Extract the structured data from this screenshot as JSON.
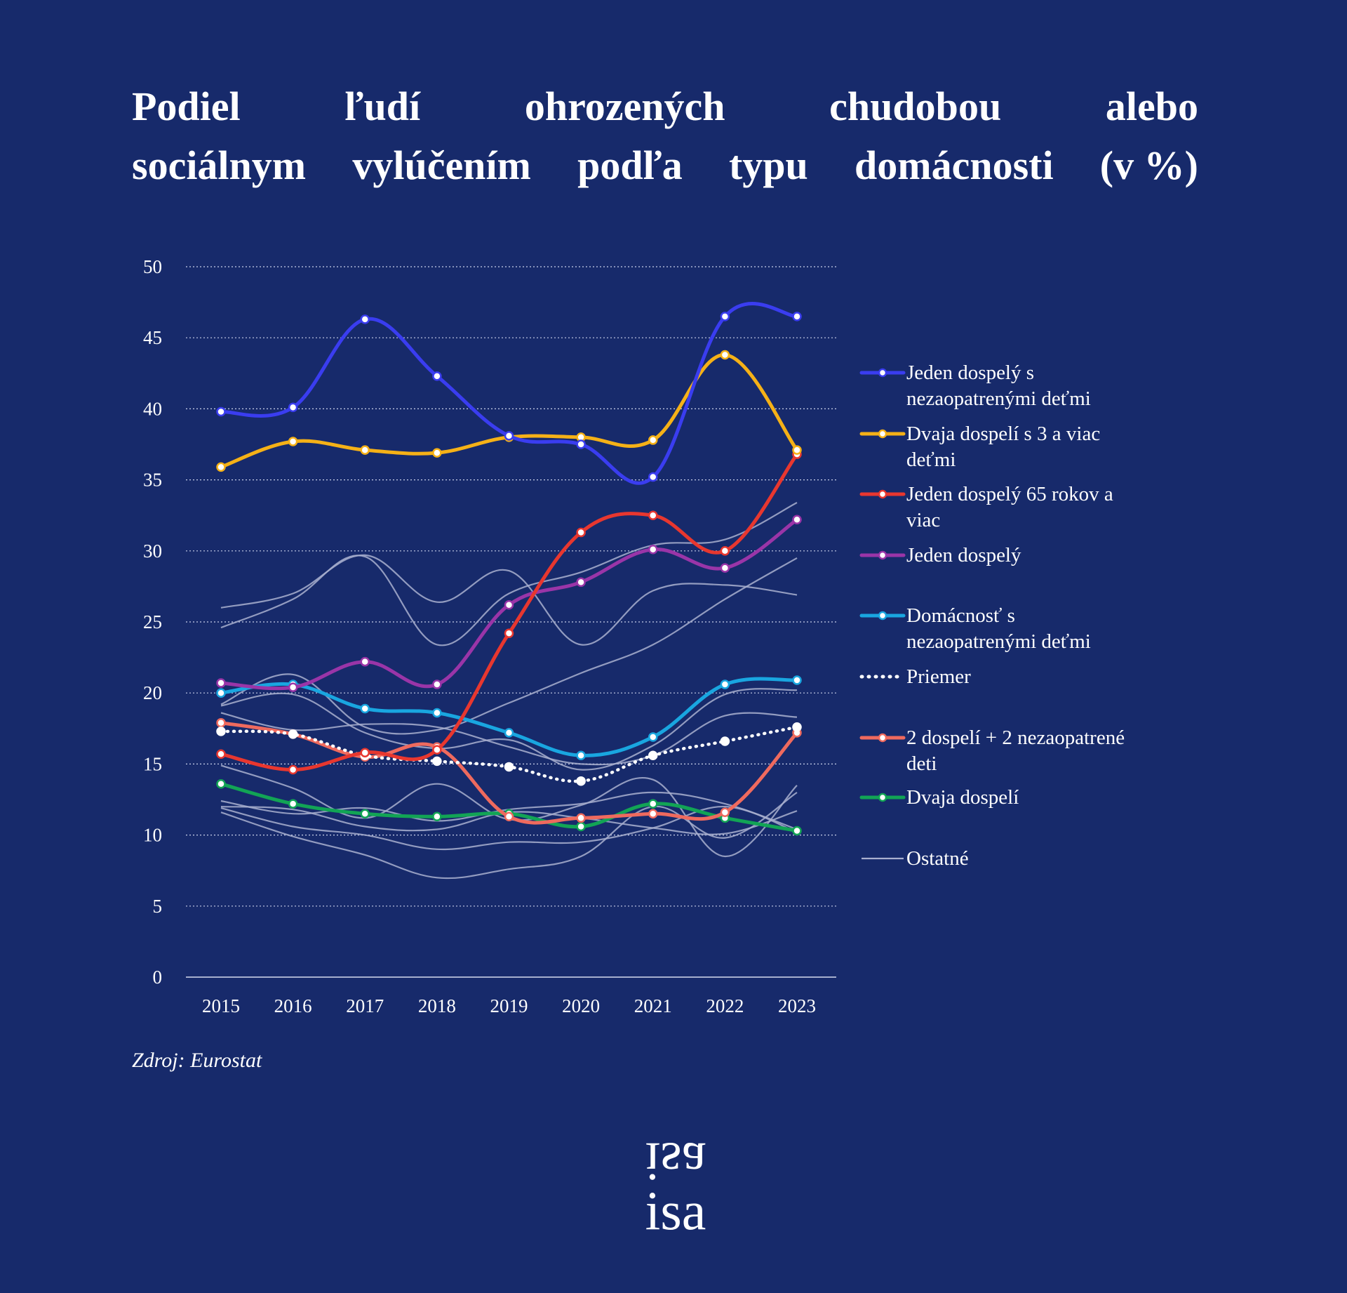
{
  "title_lines": [
    [
      "Podiel",
      "ľudí",
      "ohrozených",
      "chudobou",
      "alebo"
    ],
    [
      "sociálnym",
      "vylúčením",
      "podľa",
      "typu",
      "domácnosti",
      "(v %)"
    ]
  ],
  "source": "Zdroj: Eurostat",
  "logo": {
    "top": "isa",
    "bottom": "isa"
  },
  "colors": {
    "background": "#172a6b",
    "grid": "#c9d0ea",
    "axis": "#d6dbee",
    "text": "#ffffff",
    "other": "#a9b0cf"
  },
  "chart_data": {
    "type": "line",
    "title": "Podiel ľudí ohrozených chudobou alebo sociálnym vylúčením podľa typu domácnosti (v %)",
    "x": [
      "2015",
      "2016",
      "2017",
      "2018",
      "2019",
      "2020",
      "2021",
      "2022",
      "2023"
    ],
    "ylim": [
      0,
      50
    ],
    "yticks": [
      "0",
      "5",
      "10",
      "15",
      "20",
      "25",
      "30",
      "35",
      "40",
      "45",
      "50"
    ],
    "grid": true,
    "legend_position": "right",
    "series": [
      {
        "name": "Jeden dospelý s nezaopatrenými deťmi",
        "label_lines": [
          "Jeden dospelý s",
          "nezaopatrenými deťmi"
        ],
        "color": "#3a3df0",
        "values": [
          39.8,
          40.1,
          46.3,
          42.3,
          38.1,
          37.5,
          35.2,
          46.5,
          46.5
        ]
      },
      {
        "name": "Dvaja dospelí s 3 a viac deťmi",
        "label_lines": [
          "Dvaja dospelí s 3 a viac",
          "deťmi"
        ],
        "color": "#f5b117",
        "values": [
          35.9,
          37.7,
          37.1,
          36.9,
          38.0,
          38.0,
          37.8,
          43.8,
          37.1
        ]
      },
      {
        "name": "Jeden dospelý 65 rokov a viac",
        "label_lines": [
          "Jeden dospelý 65 rokov a",
          "viac"
        ],
        "color": "#e8372f",
        "values": [
          15.7,
          14.6,
          15.8,
          16.0,
          24.2,
          31.3,
          32.5,
          30.0,
          36.8
        ]
      },
      {
        "name": "Jeden dospelý",
        "label_lines": [
          "Jeden dospelý"
        ],
        "color": "#9a35a8",
        "values": [
          20.7,
          20.4,
          22.2,
          20.6,
          26.2,
          27.8,
          30.1,
          28.8,
          32.2
        ]
      },
      {
        "name": "Domácnosť s nezaopatrenými deťmi",
        "label_lines": [
          "Domácnosť s",
          "nezaopatrenými deťmi"
        ],
        "color": "#19a6e0",
        "values": [
          20.0,
          20.6,
          18.9,
          18.6,
          17.2,
          15.6,
          16.9,
          20.6,
          20.9
        ]
      },
      {
        "name": "Priemer",
        "label_lines": [
          "Priemer"
        ],
        "color": "#ffffff",
        "dotted": true,
        "values": [
          17.3,
          17.1,
          15.6,
          15.2,
          14.8,
          13.8,
          15.6,
          16.6,
          17.6
        ]
      },
      {
        "name": "2 dospelí + 2 nezaopatrené deti",
        "label_lines": [
          "2 dospelí + 2 nezaopatrené",
          "deti"
        ],
        "color": "#ef6a5e",
        "values": [
          17.9,
          17.1,
          15.5,
          16.2,
          11.3,
          11.2,
          11.5,
          11.6,
          17.2
        ]
      },
      {
        "name": "Dvaja dospelí",
        "label_lines": [
          "Dvaja dospelí"
        ],
        "color": "#12a455",
        "values": [
          13.6,
          12.2,
          11.5,
          11.3,
          11.5,
          10.6,
          12.2,
          11.2,
          10.3
        ]
      },
      {
        "name": "Ostatné",
        "label_lines": [
          "Ostatné"
        ],
        "color": "#a9b0cf",
        "other": true,
        "groups": [
          [
            26.0,
            27.0,
            29.7,
            26.4,
            28.6,
            23.4,
            27.2,
            27.6,
            26.9
          ],
          [
            24.6,
            26.6,
            29.6,
            23.4,
            27.0,
            28.5,
            30.4,
            30.8,
            33.4
          ],
          [
            19.2,
            21.3,
            17.6,
            17.4,
            19.3,
            21.4,
            23.4,
            26.6,
            29.5
          ],
          [
            19.1,
            19.9,
            17.2,
            16.1,
            16.7,
            14.6,
            16.3,
            19.9,
            20.2
          ],
          [
            18.6,
            17.4,
            17.8,
            17.6,
            16.2,
            15.0,
            15.6,
            18.4,
            18.3
          ],
          [
            14.9,
            13.3,
            11.2,
            13.6,
            11.1,
            12.1,
            13.9,
            8.5,
            13.5
          ],
          [
            12.4,
            11.5,
            11.9,
            11.0,
            11.8,
            12.2,
            13.0,
            12.2,
            10.4
          ],
          [
            12.0,
            11.8,
            10.6,
            10.4,
            11.6,
            11.2,
            10.5,
            10.1,
            11.7
          ],
          [
            11.6,
            9.9,
            8.6,
            7.0,
            7.6,
            8.5,
            12.0,
            9.8,
            13.0
          ],
          [
            11.9,
            10.6,
            10.0,
            9.0,
            9.5,
            9.5,
            10.5,
            12.0,
            10.2
          ]
        ]
      }
    ]
  }
}
